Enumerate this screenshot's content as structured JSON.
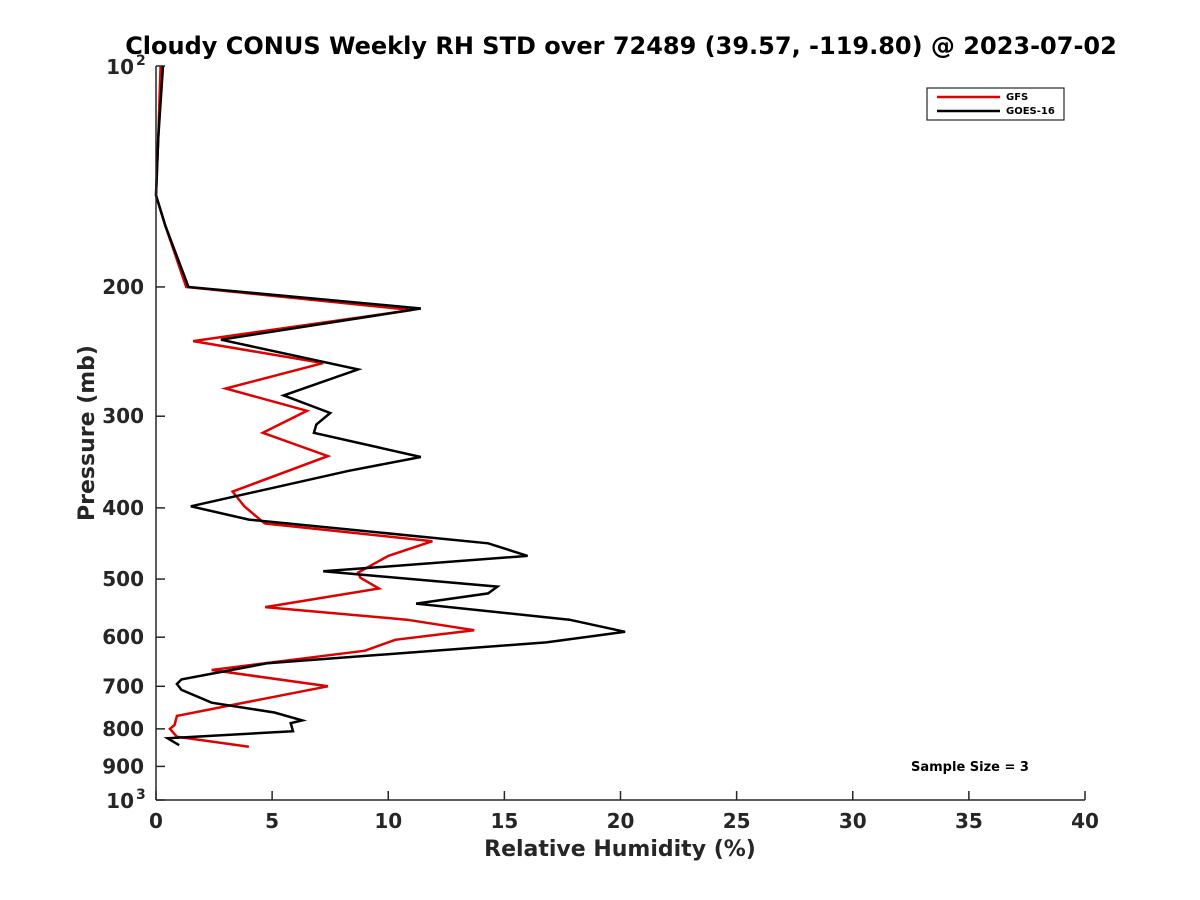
{
  "chart_data": {
    "type": "line",
    "title": "Cloudy CONUS Weekly RH STD over 72489 (39.57, -119.80) @ 2023-07-02",
    "xlabel": "Relative Humidity (%)",
    "ylabel": "Pressure (mb)",
    "xlim": [
      0,
      40
    ],
    "ylim": [
      100,
      1000
    ],
    "yscale": "log",
    "y_reversed": true,
    "grid": false,
    "legend_position": "top-right",
    "x_ticks": [
      "0",
      "5",
      "10",
      "15",
      "20",
      "25",
      "30",
      "35",
      "40"
    ],
    "y_ticks": [
      {
        "value": 100,
        "base": "10",
        "exp": "2"
      },
      {
        "value": 200,
        "label": "200"
      },
      {
        "value": 300,
        "label": "300"
      },
      {
        "value": 400,
        "label": "400"
      },
      {
        "value": 500,
        "label": "500"
      },
      {
        "value": 600,
        "label": "600"
      },
      {
        "value": 700,
        "label": "700"
      },
      {
        "value": 800,
        "label": "800"
      },
      {
        "value": 900,
        "label": "900"
      },
      {
        "value": 1000,
        "base": "10",
        "exp": "3"
      }
    ],
    "series": [
      {
        "name": "GFS",
        "color": "#e00000",
        "points": [
          [
            0.2,
            100
          ],
          [
            0.1,
            125
          ],
          [
            0.0,
            150
          ],
          [
            0.4,
            165
          ],
          [
            1.3,
            200
          ],
          [
            11.0,
            215
          ],
          [
            1.6,
            237
          ],
          [
            7.2,
            254
          ],
          [
            3.0,
            275
          ],
          [
            6.5,
            295
          ],
          [
            4.6,
            316
          ],
          [
            7.4,
            340
          ],
          [
            3.3,
            380
          ],
          [
            3.8,
            398
          ],
          [
            4.6,
            418
          ],
          [
            4.7,
            420
          ],
          [
            11.9,
            444
          ],
          [
            10.0,
            465
          ],
          [
            8.7,
            490
          ],
          [
            8.8,
            498
          ],
          [
            9.6,
            515
          ],
          [
            4.7,
            546
          ],
          [
            10.8,
            568
          ],
          [
            13.7,
            587
          ],
          [
            10.3,
            605
          ],
          [
            9.0,
            626
          ],
          [
            2.4,
            665
          ],
          [
            7.4,
            700
          ],
          [
            3.5,
            740
          ],
          [
            0.9,
            768
          ],
          [
            0.8,
            790
          ],
          [
            0.6,
            800
          ],
          [
            0.9,
            820
          ],
          [
            4.0,
            846
          ]
        ]
      },
      {
        "name": "GOES-16",
        "color": "#000000",
        "points": [
          [
            0.3,
            100
          ],
          [
            0.1,
            125
          ],
          [
            0.0,
            150
          ],
          [
            0.4,
            165
          ],
          [
            1.4,
            200
          ],
          [
            11.4,
            214
          ],
          [
            2.8,
            236
          ],
          [
            8.7,
            259
          ],
          [
            5.5,
            281
          ],
          [
            7.5,
            297
          ],
          [
            6.9,
            308
          ],
          [
            6.8,
            316
          ],
          [
            11.4,
            341
          ],
          [
            8.3,
            356
          ],
          [
            1.5,
            398
          ],
          [
            4.0,
            415
          ],
          [
            14.3,
            447
          ],
          [
            16.0,
            465
          ],
          [
            7.2,
            488
          ],
          [
            14.7,
            512
          ],
          [
            14.3,
            523
          ],
          [
            11.2,
            540
          ],
          [
            17.8,
            568
          ],
          [
            20.2,
            590
          ],
          [
            16.8,
            610
          ],
          [
            4.8,
            651
          ],
          [
            1.1,
            685
          ],
          [
            0.9,
            695
          ],
          [
            1.1,
            708
          ],
          [
            2.4,
            737
          ],
          [
            5.1,
            760
          ],
          [
            6.3,
            779
          ],
          [
            5.8,
            786
          ],
          [
            5.9,
            806
          ],
          [
            0.5,
            824
          ],
          [
            1.0,
            842
          ]
        ]
      }
    ],
    "annotations": [
      "Sample Size = 3"
    ]
  }
}
